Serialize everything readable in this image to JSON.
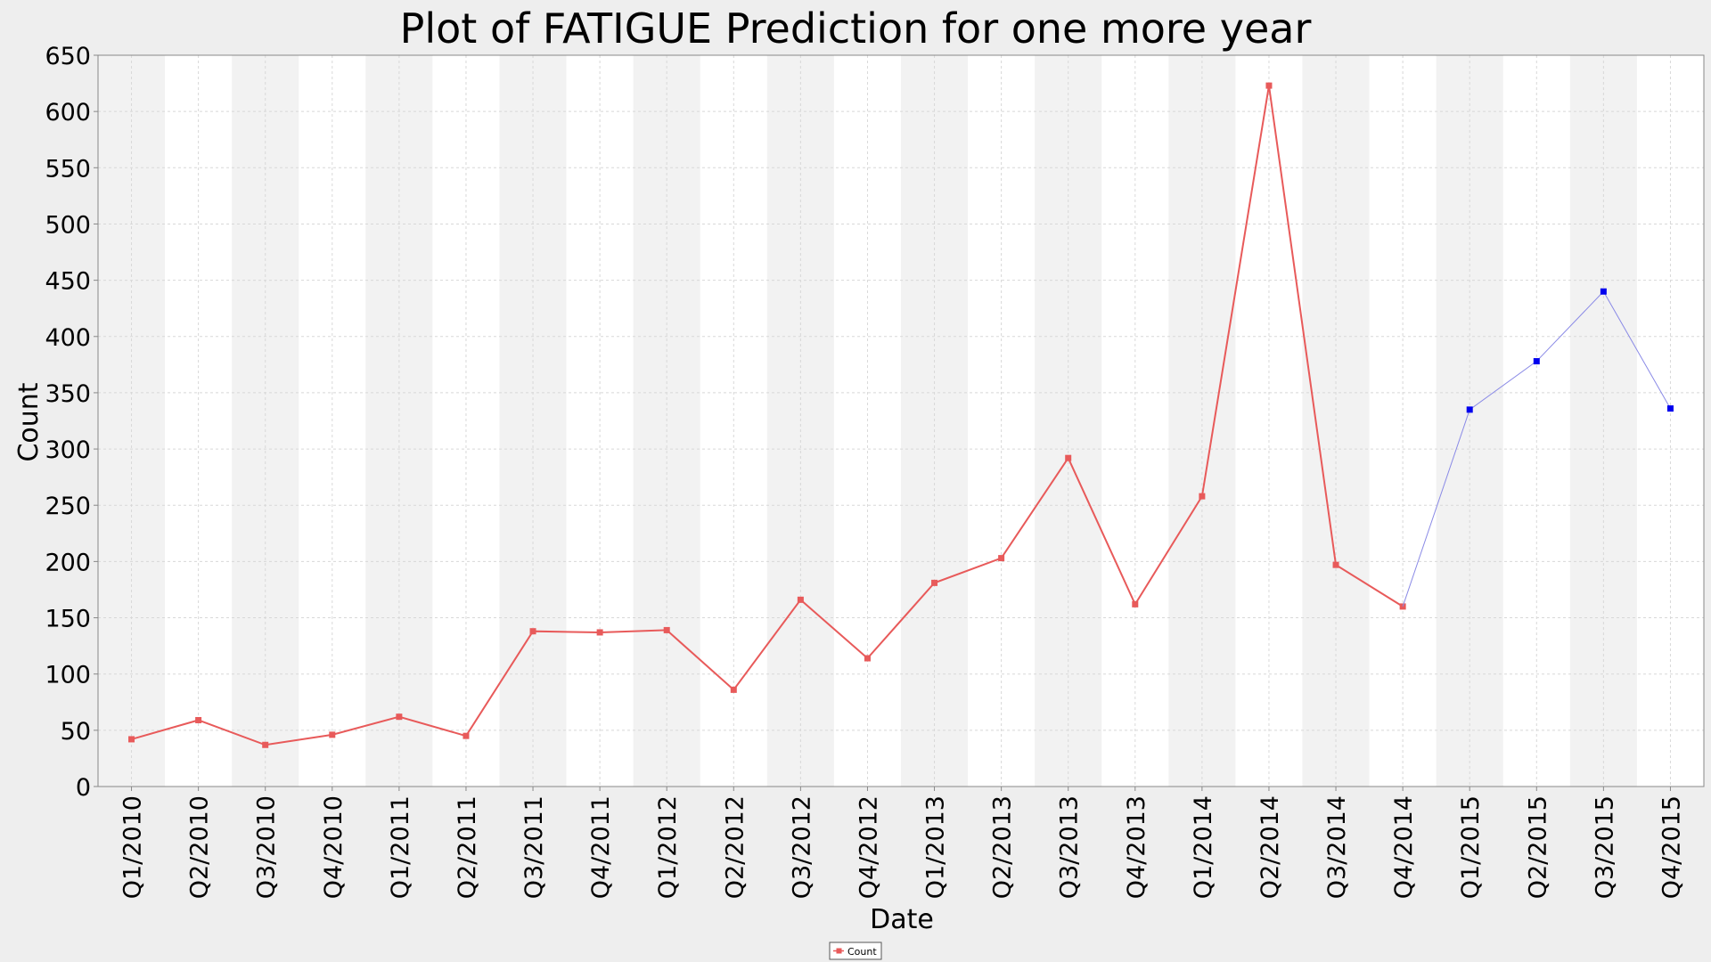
{
  "chart_data": {
    "type": "line",
    "title": "Plot of FATIGUE Prediction for one more year",
    "xlabel": "Date",
    "ylabel": "Count",
    "ylim": [
      0,
      650
    ],
    "yticks": [
      0,
      50,
      100,
      150,
      200,
      250,
      300,
      350,
      400,
      450,
      500,
      550,
      600,
      650
    ],
    "grid": true,
    "categories": [
      "Q1/2010",
      "Q2/2010",
      "Q3/2010",
      "Q4/2010",
      "Q1/2011",
      "Q2/2011",
      "Q3/2011",
      "Q4/2011",
      "Q1/2012",
      "Q2/2012",
      "Q3/2012",
      "Q4/2012",
      "Q1/2013",
      "Q2/2013",
      "Q3/2013",
      "Q4/2013",
      "Q1/2014",
      "Q2/2014",
      "Q3/2014",
      "Q4/2014",
      "Q1/2015",
      "Q2/2015",
      "Q3/2015",
      "Q4/2015"
    ],
    "series": [
      {
        "name": "Count",
        "color": "#e85a5a",
        "values": [
          42,
          59,
          37,
          46,
          62,
          45,
          138,
          137,
          139,
          86,
          166,
          114,
          181,
          203,
          292,
          162,
          258,
          623,
          197,
          160,
          null,
          null,
          null,
          null
        ]
      },
      {
        "color": "#0000ee",
        "line_color": "#8a8ae6",
        "values": [
          null,
          null,
          null,
          null,
          null,
          null,
          null,
          null,
          null,
          null,
          null,
          null,
          null,
          null,
          null,
          null,
          null,
          null,
          null,
          160,
          335,
          378,
          440,
          336
        ]
      }
    ],
    "legend": {
      "position": "bottom-center",
      "entries": [
        "Count"
      ]
    }
  }
}
